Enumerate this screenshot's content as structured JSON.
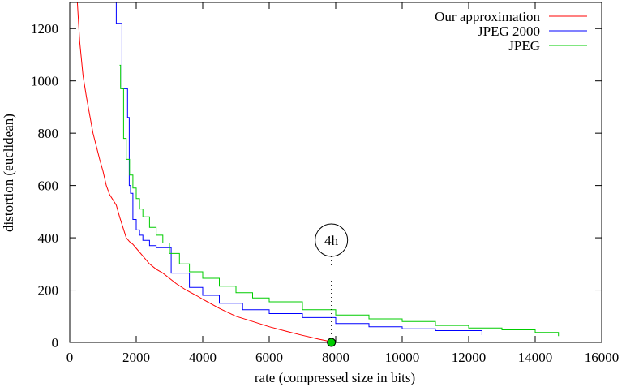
{
  "chart_data": {
    "type": "line",
    "title": "",
    "xlabel": "rate (compressed size in bits)",
    "ylabel": "distortion (euclidean)",
    "xlim": [
      0,
      16000
    ],
    "ylim": [
      0,
      1300
    ],
    "xticks": [
      0,
      2000,
      4000,
      6000,
      8000,
      10000,
      12000,
      14000,
      16000
    ],
    "yticks": [
      0,
      200,
      400,
      600,
      800,
      1000,
      1200
    ],
    "grid": false,
    "legend_position": "top-right",
    "series": [
      {
        "name": "Our approximation",
        "color": "#ff0000",
        "step": false,
        "points": [
          [
            230,
            1300
          ],
          [
            300,
            1150
          ],
          [
            400,
            1020
          ],
          [
            500,
            940
          ],
          [
            600,
            870
          ],
          [
            700,
            800
          ],
          [
            800,
            750
          ],
          [
            900,
            700
          ],
          [
            1000,
            655
          ],
          [
            1100,
            600
          ],
          [
            1200,
            565
          ],
          [
            1300,
            545
          ],
          [
            1400,
            525
          ],
          [
            1500,
            480
          ],
          [
            1600,
            440
          ],
          [
            1700,
            400
          ],
          [
            1800,
            385
          ],
          [
            1900,
            375
          ],
          [
            2000,
            360
          ],
          [
            2200,
            330
          ],
          [
            2400,
            300
          ],
          [
            2600,
            280
          ],
          [
            2800,
            265
          ],
          [
            3000,
            245
          ],
          [
            3200,
            225
          ],
          [
            3500,
            200
          ],
          [
            3800,
            180
          ],
          [
            4000,
            165
          ],
          [
            4500,
            130
          ],
          [
            5000,
            100
          ],
          [
            5500,
            80
          ],
          [
            6000,
            60
          ],
          [
            6500,
            43
          ],
          [
            7000,
            27
          ],
          [
            7500,
            12
          ],
          [
            7900,
            2
          ]
        ]
      },
      {
        "name": "JPEG 2000",
        "color": "#0000ff",
        "step": true,
        "points": [
          [
            1350,
            1300
          ],
          [
            1400,
            1220
          ],
          [
            1570,
            970
          ],
          [
            1740,
            860
          ],
          [
            1790,
            600
          ],
          [
            1830,
            570
          ],
          [
            1900,
            470
          ],
          [
            2000,
            430
          ],
          [
            2100,
            410
          ],
          [
            2200,
            390
          ],
          [
            2400,
            370
          ],
          [
            2600,
            362
          ],
          [
            3050,
            265
          ],
          [
            3600,
            210
          ],
          [
            4000,
            180
          ],
          [
            4500,
            150
          ],
          [
            5200,
            125
          ],
          [
            6000,
            110
          ],
          [
            7000,
            95
          ],
          [
            8000,
            72
          ],
          [
            9000,
            60
          ],
          [
            10000,
            52
          ],
          [
            11000,
            45
          ],
          [
            12400,
            28
          ]
        ]
      },
      {
        "name": "JPEG",
        "color": "#00cc00",
        "step": true,
        "points": [
          [
            1500,
            1060
          ],
          [
            1530,
            970
          ],
          [
            1620,
            780
          ],
          [
            1700,
            700
          ],
          [
            1800,
            640
          ],
          [
            1900,
            590
          ],
          [
            2000,
            550
          ],
          [
            2100,
            510
          ],
          [
            2200,
            480
          ],
          [
            2400,
            440
          ],
          [
            2600,
            410
          ],
          [
            2800,
            380
          ],
          [
            3000,
            340
          ],
          [
            3300,
            300
          ],
          [
            3600,
            270
          ],
          [
            4000,
            245
          ],
          [
            4500,
            215
          ],
          [
            5000,
            190
          ],
          [
            5500,
            170
          ],
          [
            6000,
            155
          ],
          [
            7000,
            125
          ],
          [
            8000,
            105
          ],
          [
            9000,
            90
          ],
          [
            10000,
            80
          ],
          [
            11000,
            65
          ],
          [
            12000,
            55
          ],
          [
            13000,
            48
          ],
          [
            14000,
            38
          ],
          [
            14700,
            24
          ]
        ]
      }
    ],
    "annotations": [
      {
        "label": "4h",
        "x": 7870,
        "y": 0
      }
    ]
  }
}
